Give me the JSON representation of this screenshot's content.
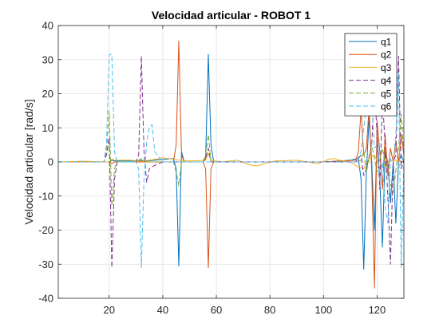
{
  "chart_data": {
    "type": "line",
    "title": "Velocidad articular - ROBOT 1",
    "xlabel": "",
    "ylabel": "Velocidad articular [rad/s]",
    "xlim": [
      1,
      130
    ],
    "ylim": [
      -40,
      40
    ],
    "xticks": [
      20,
      40,
      60,
      80,
      100,
      120
    ],
    "yticks": [
      -40,
      -30,
      -20,
      -10,
      0,
      10,
      20,
      30,
      40
    ],
    "grid": true,
    "legend_position": "top-right",
    "series": [
      {
        "name": "q1",
        "color": "#0072BD",
        "dash": "solid",
        "x": [
          1,
          20,
          21,
          22,
          30,
          32,
          34,
          44,
          45,
          46,
          47,
          48,
          55,
          56,
          57,
          58,
          59,
          70,
          100,
          110,
          113,
          114,
          115,
          116,
          117,
          118,
          119,
          120,
          121,
          122,
          123,
          124,
          125,
          126,
          127,
          128,
          129,
          130
        ],
        "y": [
          0,
          0,
          0.5,
          0.3,
          0.3,
          0.5,
          0.3,
          1,
          -2,
          -30.5,
          3,
          0,
          0,
          1,
          31.5,
          5,
          0,
          0,
          0,
          0.5,
          1,
          -5,
          -31.5,
          -3,
          13,
          0,
          -20,
          8,
          -5,
          -25,
          3,
          0,
          -12,
          0,
          -18,
          0,
          2,
          0
        ]
      },
      {
        "name": "q2",
        "color": "#D95319",
        "dash": "solid",
        "x": [
          1,
          20,
          21,
          22,
          44,
          45,
          46,
          47,
          48,
          55,
          56,
          57,
          58,
          59,
          70,
          100,
          112,
          113,
          114,
          115,
          116,
          117,
          118,
          119,
          120,
          121,
          122,
          123,
          124,
          125,
          126,
          127,
          128,
          129,
          130
        ],
        "y": [
          0,
          0,
          -0.5,
          0,
          0,
          5,
          35.5,
          2,
          0,
          0,
          -2,
          -31,
          -2,
          0,
          0,
          0,
          0.5,
          3,
          15,
          2,
          4,
          16,
          -3,
          -37,
          12,
          3,
          -8,
          8,
          -4,
          4,
          0,
          6,
          0,
          8,
          2
        ]
      },
      {
        "name": "q3",
        "color": "#EDB120",
        "dash": "solid",
        "x": [
          1,
          10,
          20,
          21,
          22,
          28,
          32,
          36,
          40,
          44,
          46,
          50,
          56,
          57,
          58,
          62,
          68,
          72,
          75,
          78,
          82,
          90,
          98,
          102,
          104,
          106,
          110,
          113,
          115,
          117,
          119,
          121,
          123,
          125,
          127,
          130
        ],
        "y": [
          0,
          0.2,
          0,
          0.8,
          0.5,
          0.5,
          0.2,
          0.6,
          1.2,
          0.8,
          0.5,
          0.3,
          0.5,
          2.5,
          0.5,
          0,
          0.5,
          -0.8,
          -1.2,
          -0.5,
          0.3,
          0.5,
          -0.5,
          0.8,
          1,
          0.5,
          0,
          -1.5,
          -2,
          1,
          2,
          -1.5,
          -1,
          0.3,
          0.5,
          0
        ]
      },
      {
        "name": "q4",
        "color": "#7E2F8E",
        "dash": "dashed",
        "x": [
          1,
          18,
          19,
          20,
          21,
          22,
          23,
          30,
          31,
          32,
          33,
          34,
          35,
          37,
          40,
          55,
          56,
          57,
          58,
          70,
          112,
          114,
          115,
          116,
          118,
          119,
          120,
          121,
          122,
          123,
          124,
          125,
          126,
          127,
          128,
          129,
          130
        ],
        "y": [
          0,
          0,
          2,
          7,
          -31,
          -5,
          0,
          0,
          2,
          31,
          3,
          -6,
          -2,
          -1,
          0,
          0,
          1,
          4,
          0,
          0,
          0,
          2,
          -4,
          -2,
          5,
          22,
          8,
          -8,
          19,
          5,
          -10,
          -30,
          0,
          2,
          31,
          -2,
          0
        ]
      },
      {
        "name": "q5",
        "color": "#77AC30",
        "dash": "dashed",
        "x": [
          1,
          18,
          19,
          20,
          21,
          22,
          23,
          30,
          32,
          34,
          44,
          45,
          46,
          47,
          55,
          56,
          57,
          58,
          70,
          112,
          114,
          115,
          116,
          118,
          120,
          122,
          124,
          126,
          128,
          129,
          130
        ],
        "y": [
          0,
          0,
          3,
          15,
          -13,
          -2,
          0,
          0,
          1,
          0,
          0,
          -3,
          -7,
          0,
          0,
          2,
          8,
          0,
          0,
          0,
          0.5,
          3,
          -3,
          5,
          -3,
          4,
          -4,
          -9,
          4,
          14,
          2
        ]
      },
      {
        "name": "q6",
        "color": "#4DBEEE",
        "dash": "dashed",
        "x": [
          1,
          18,
          19,
          20,
          21,
          22,
          23,
          30,
          31,
          32,
          33,
          34,
          35,
          36,
          37,
          40,
          112,
          114,
          115,
          116,
          117,
          118,
          119,
          120,
          121,
          122,
          123,
          124,
          125,
          126,
          127,
          128,
          129,
          130
        ],
        "y": [
          0,
          0,
          5,
          31.5,
          31.5,
          3,
          0,
          0,
          -2,
          -31,
          -5,
          6,
          10,
          11,
          3,
          0,
          0,
          3,
          10,
          16,
          21,
          18,
          4,
          5,
          -6,
          0,
          -13,
          -18,
          1,
          0,
          8,
          26,
          -31,
          0
        ]
      }
    ]
  }
}
